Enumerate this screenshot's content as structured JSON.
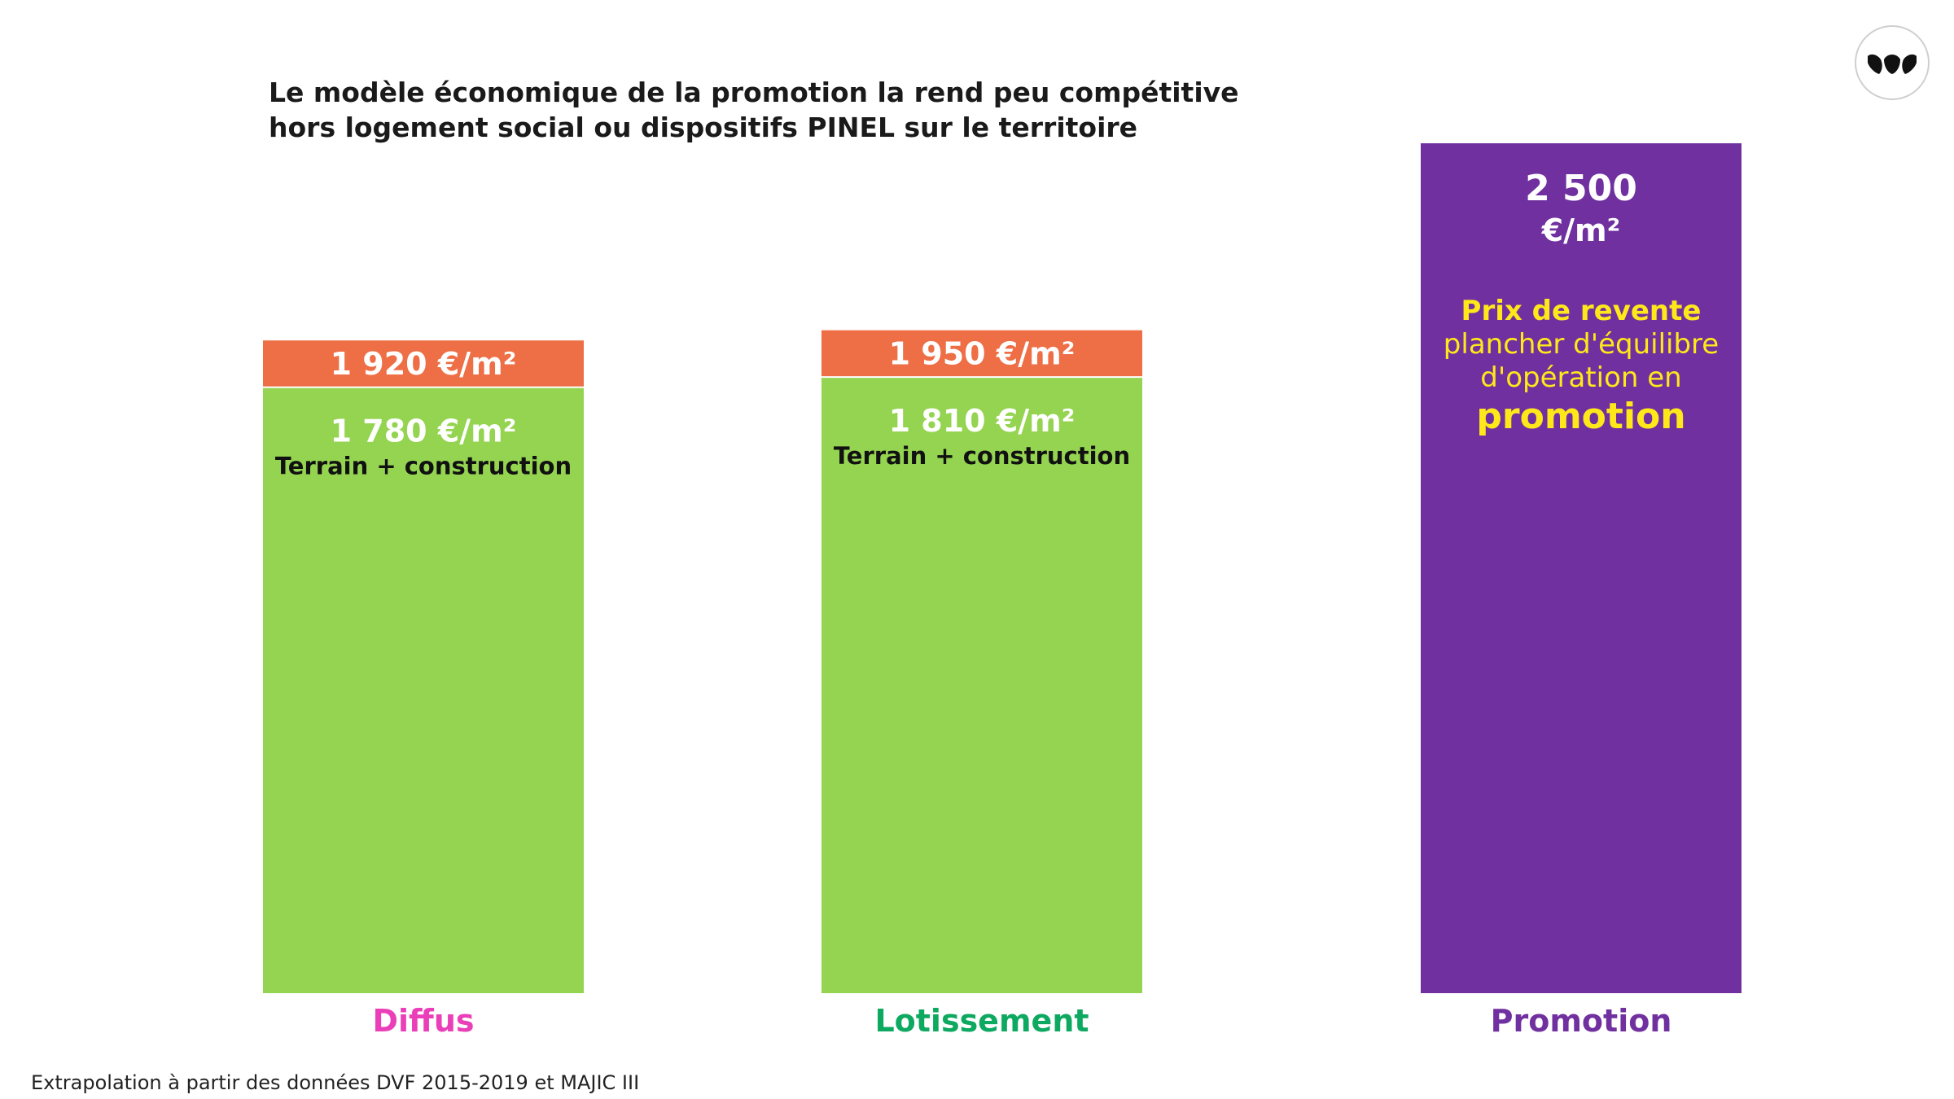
{
  "title_lines": [
    "Le modèle économique de la promotion la rend peu compétitive",
    "hors logement social ou dispositifs PINEL sur le territoire"
  ],
  "source": "Extrapolation à partir des données DVF 2015-2019 et MAJIC III",
  "logo": {
    "icon": "leaf-logo-icon"
  },
  "colors": {
    "cost": "#94d451",
    "margin": "#ee6e45",
    "promotion": "#7030a0",
    "promo_text": "#ffe81a",
    "diffus_label": "#ea3fb8",
    "lotissement_label": "#0ea961",
    "promotion_label": "#7030a0"
  },
  "chart_data": {
    "type": "bar",
    "stacked": true,
    "categories": [
      "Diffus",
      "Lotissement",
      "Promotion"
    ],
    "series": [
      {
        "values": [
          1780,
          1810,
          null
        ]
      },
      {
        "values": [
          140,
          140,
          null
        ]
      },
      {
        "values": [
          null,
          null,
          2500
        ]
      }
    ],
    "bar_totals": [
      1920,
      1950,
      2500
    ],
    "ylim": [
      0,
      2500
    ],
    "grid": false,
    "legend": "none",
    "labels": {
      "diffus_total": "1 920 €/m²",
      "diffus_cost": "1 780 €/m²",
      "diffus_cost_desc": "Terrain + construction",
      "lotissement_total": "1 950 €/m²",
      "lotissement_cost": "1 810 €/m²",
      "lotissement_cost_desc": "Terrain + construction",
      "promotion_value": "2 500",
      "promotion_unit": "€/m²",
      "promotion_desc": [
        "Prix de revente",
        "plancher d'équilibre",
        "d'opération en",
        "promotion"
      ]
    }
  }
}
